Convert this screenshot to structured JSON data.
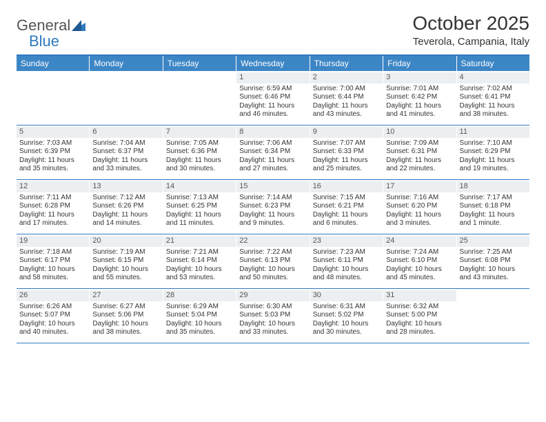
{
  "brand": {
    "part1": "General",
    "part2": "Blue"
  },
  "title": "October 2025",
  "location": "Teverola, Campania, Italy",
  "colors": {
    "header_bg": "#3d86c6",
    "border": "#2f7abf",
    "daynum_bg": "#eceff1",
    "text": "#333333"
  },
  "day_names": [
    "Sunday",
    "Monday",
    "Tuesday",
    "Wednesday",
    "Thursday",
    "Friday",
    "Saturday"
  ],
  "weeks": [
    [
      {
        "day": null
      },
      {
        "day": null
      },
      {
        "day": null
      },
      {
        "day": 1,
        "sunrise": "6:59 AM",
        "sunset": "6:46 PM",
        "daylight": "11 hours and 46 minutes."
      },
      {
        "day": 2,
        "sunrise": "7:00 AM",
        "sunset": "6:44 PM",
        "daylight": "11 hours and 43 minutes."
      },
      {
        "day": 3,
        "sunrise": "7:01 AM",
        "sunset": "6:42 PM",
        "daylight": "11 hours and 41 minutes."
      },
      {
        "day": 4,
        "sunrise": "7:02 AM",
        "sunset": "6:41 PM",
        "daylight": "11 hours and 38 minutes."
      }
    ],
    [
      {
        "day": 5,
        "sunrise": "7:03 AM",
        "sunset": "6:39 PM",
        "daylight": "11 hours and 35 minutes."
      },
      {
        "day": 6,
        "sunrise": "7:04 AM",
        "sunset": "6:37 PM",
        "daylight": "11 hours and 33 minutes."
      },
      {
        "day": 7,
        "sunrise": "7:05 AM",
        "sunset": "6:36 PM",
        "daylight": "11 hours and 30 minutes."
      },
      {
        "day": 8,
        "sunrise": "7:06 AM",
        "sunset": "6:34 PM",
        "daylight": "11 hours and 27 minutes."
      },
      {
        "day": 9,
        "sunrise": "7:07 AM",
        "sunset": "6:33 PM",
        "daylight": "11 hours and 25 minutes."
      },
      {
        "day": 10,
        "sunrise": "7:09 AM",
        "sunset": "6:31 PM",
        "daylight": "11 hours and 22 minutes."
      },
      {
        "day": 11,
        "sunrise": "7:10 AM",
        "sunset": "6:29 PM",
        "daylight": "11 hours and 19 minutes."
      }
    ],
    [
      {
        "day": 12,
        "sunrise": "7:11 AM",
        "sunset": "6:28 PM",
        "daylight": "11 hours and 17 minutes."
      },
      {
        "day": 13,
        "sunrise": "7:12 AM",
        "sunset": "6:26 PM",
        "daylight": "11 hours and 14 minutes."
      },
      {
        "day": 14,
        "sunrise": "7:13 AM",
        "sunset": "6:25 PM",
        "daylight": "11 hours and 11 minutes."
      },
      {
        "day": 15,
        "sunrise": "7:14 AM",
        "sunset": "6:23 PM",
        "daylight": "11 hours and 9 minutes."
      },
      {
        "day": 16,
        "sunrise": "7:15 AM",
        "sunset": "6:21 PM",
        "daylight": "11 hours and 6 minutes."
      },
      {
        "day": 17,
        "sunrise": "7:16 AM",
        "sunset": "6:20 PM",
        "daylight": "11 hours and 3 minutes."
      },
      {
        "day": 18,
        "sunrise": "7:17 AM",
        "sunset": "6:18 PM",
        "daylight": "11 hours and 1 minute."
      }
    ],
    [
      {
        "day": 19,
        "sunrise": "7:18 AM",
        "sunset": "6:17 PM",
        "daylight": "10 hours and 58 minutes."
      },
      {
        "day": 20,
        "sunrise": "7:19 AM",
        "sunset": "6:15 PM",
        "daylight": "10 hours and 55 minutes."
      },
      {
        "day": 21,
        "sunrise": "7:21 AM",
        "sunset": "6:14 PM",
        "daylight": "10 hours and 53 minutes."
      },
      {
        "day": 22,
        "sunrise": "7:22 AM",
        "sunset": "6:13 PM",
        "daylight": "10 hours and 50 minutes."
      },
      {
        "day": 23,
        "sunrise": "7:23 AM",
        "sunset": "6:11 PM",
        "daylight": "10 hours and 48 minutes."
      },
      {
        "day": 24,
        "sunrise": "7:24 AM",
        "sunset": "6:10 PM",
        "daylight": "10 hours and 45 minutes."
      },
      {
        "day": 25,
        "sunrise": "7:25 AM",
        "sunset": "6:08 PM",
        "daylight": "10 hours and 43 minutes."
      }
    ],
    [
      {
        "day": 26,
        "sunrise": "6:26 AM",
        "sunset": "5:07 PM",
        "daylight": "10 hours and 40 minutes."
      },
      {
        "day": 27,
        "sunrise": "6:27 AM",
        "sunset": "5:06 PM",
        "daylight": "10 hours and 38 minutes."
      },
      {
        "day": 28,
        "sunrise": "6:29 AM",
        "sunset": "5:04 PM",
        "daylight": "10 hours and 35 minutes."
      },
      {
        "day": 29,
        "sunrise": "6:30 AM",
        "sunset": "5:03 PM",
        "daylight": "10 hours and 33 minutes."
      },
      {
        "day": 30,
        "sunrise": "6:31 AM",
        "sunset": "5:02 PM",
        "daylight": "10 hours and 30 minutes."
      },
      {
        "day": 31,
        "sunrise": "6:32 AM",
        "sunset": "5:00 PM",
        "daylight": "10 hours and 28 minutes."
      },
      {
        "day": null
      }
    ]
  ],
  "labels": {
    "sunrise": "Sunrise: ",
    "sunset": "Sunset: ",
    "daylight": "Daylight: "
  }
}
